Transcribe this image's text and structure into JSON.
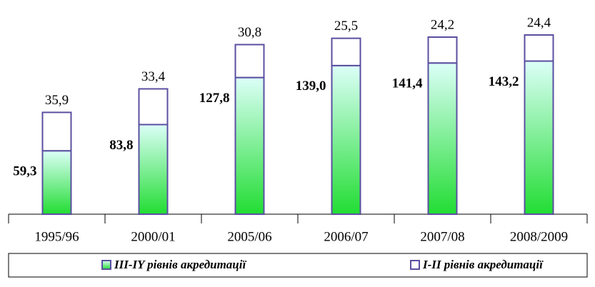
{
  "chart_data": {
    "type": "stacked_bar",
    "categories": [
      "1995/96",
      "2000/01",
      "2005/06",
      "2006/07",
      "2007/08",
      "2008/2009"
    ],
    "series": [
      {
        "name": "III-IY рівнів акредитації",
        "color": "#22dd33",
        "values": [
          59.3,
          83.8,
          127.8,
          139.0,
          141.4,
          143.2
        ],
        "value_labels": [
          "59,3",
          "83,8",
          "127,8",
          "139,0",
          "141,4",
          "143,2"
        ]
      },
      {
        "name": "I-II рівнів акредитації",
        "color": "#ffffff",
        "values": [
          35.9,
          33.4,
          30.8,
          25.5,
          24.2,
          24.4
        ],
        "value_labels": [
          "35,9",
          "33,4",
          "30,8",
          "25,5",
          "24,2",
          "24,4"
        ]
      }
    ]
  }
}
